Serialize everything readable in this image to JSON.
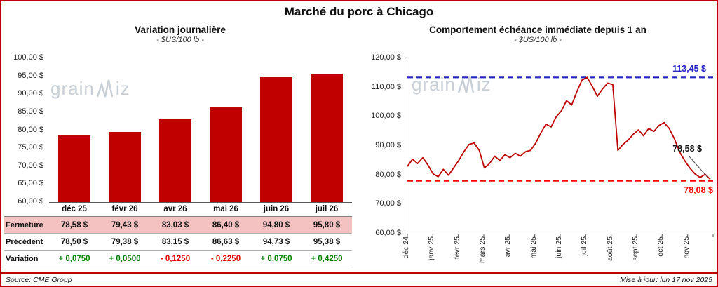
{
  "page_title": "Marché du porc à Chicago",
  "watermark": {
    "pre": "grain",
    "post": "iz"
  },
  "colors": {
    "brand_red": "#C00000",
    "series_red": "#C00000",
    "high_blue": "#2323C8",
    "low_red": "#FF0000",
    "positive_green": "#008000",
    "negative_red": "#E00000",
    "highlight_pink": "#F5C2C2"
  },
  "footer": {
    "source": "Source: CME Group",
    "updated": "Mise à jour: lun 17 nov 2025"
  },
  "chart_data": [
    {
      "type": "bar",
      "title": "Variation journalière",
      "subtitle": "- $US/100 lb -",
      "categories": [
        "déc 25",
        "févr 26",
        "avr 26",
        "mai 26",
        "juin 26",
        "juil 26"
      ],
      "values": [
        78.58,
        79.43,
        83.03,
        86.4,
        94.8,
        95.8
      ],
      "ylim": [
        60,
        100
      ],
      "ytick_labels": [
        "100,00 $",
        "95,00 $",
        "90,00 $",
        "85,00 $",
        "80,00 $",
        "75,00 $",
        "70,00 $",
        "65,00 $",
        "60,00 $"
      ],
      "table": {
        "rows": [
          {
            "label": "Fermeture",
            "highlight": true,
            "values": [
              "78,58 $",
              "79,43 $",
              "83,03 $",
              "86,40 $",
              "94,80 $",
              "95,80 $"
            ]
          },
          {
            "label": "Précédent",
            "highlight": false,
            "values": [
              "78,50 $",
              "79,38 $",
              "83,15 $",
              "86,63 $",
              "94,73 $",
              "95,38 $"
            ]
          },
          {
            "label": "Variation",
            "highlight": false,
            "values": [
              "+ 0,0750",
              "+ 0,0500",
              "- 0,1250",
              "- 0,2250",
              "+ 0,0750",
              "+ 0,4250"
            ],
            "signs": [
              1,
              1,
              -1,
              -1,
              1,
              1
            ]
          }
        ]
      }
    },
    {
      "type": "line",
      "title": "Comportement échéance immédiate depuis 1 an",
      "subtitle": "- $US/100 lb -",
      "ylim": [
        60,
        120
      ],
      "ytick_labels": [
        "120,00 $",
        "110,00 $",
        "100,00 $",
        "90,00 $",
        "80,00 $",
        "70,00 $",
        "60,00 $"
      ],
      "x_labels": [
        "déc 24",
        "janv 25",
        "févr 25",
        "mars 25",
        "avr 25",
        "mai 25",
        "juin 25",
        "juil 25",
        "août 25",
        "sept 25",
        "oct 25",
        "nov 25"
      ],
      "series": [
        {
          "name": "échéance immédiate",
          "values": [
            83.0,
            85.5,
            84.0,
            86.0,
            83.5,
            80.5,
            79.5,
            82.0,
            80.0,
            82.5,
            85.0,
            88.0,
            90.5,
            91.0,
            88.5,
            82.5,
            84.0,
            86.5,
            85.0,
            87.0,
            86.0,
            87.5,
            86.5,
            88.0,
            88.5,
            91.0,
            94.5,
            97.5,
            96.5,
            100.0,
            102.0,
            105.5,
            104.0,
            108.5,
            112.5,
            113.45,
            110.5,
            107.0,
            109.5,
            111.5,
            111.0,
            88.5,
            90.5,
            92.0,
            94.0,
            95.5,
            93.5,
            96.0,
            95.0,
            97.0,
            98.0,
            96.0,
            92.5,
            88.0,
            85.0,
            82.5,
            80.5,
            79.2,
            80.3,
            78.58
          ]
        }
      ],
      "annotations": {
        "high": {
          "value": 113.45,
          "label": "113,45 $"
        },
        "low": {
          "value": 78.08,
          "label": "78,08 $"
        },
        "last": {
          "value": 78.58,
          "label": "78,58 $"
        }
      }
    }
  ]
}
